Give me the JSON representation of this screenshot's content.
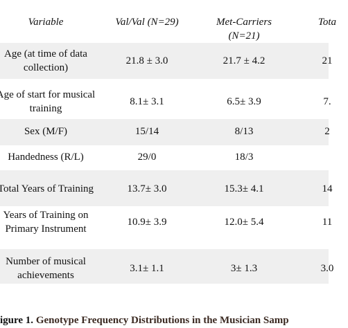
{
  "table": {
    "header": [
      "Variable",
      "Val/Val (N=29)",
      "Met-Carriers (N=21)",
      "Tota"
    ],
    "rows": [
      [
        "Age (at time of data collection)",
        "21.8 ± 3.0",
        "21.7 ± 4.2",
        "21"
      ],
      [
        "Age of start for musical training",
        "8.1± 3.1",
        "6.5± 3.9",
        "7."
      ],
      [
        "Sex (M/F)",
        "15/14",
        "8/13",
        "2"
      ],
      [
        "Handedness (R/L)",
        "29/0",
        "18/3",
        ""
      ],
      [
        "Total Years of Training",
        "13.7± 3.0",
        "15.3± 4.1",
        "14"
      ],
      [
        "Years of Training on Primary Instrument",
        "10.9± 3.9",
        "12.0± 5.4",
        "11"
      ],
      [
        "Number of musical achievements",
        "3.1± 1.1",
        "3± 1.3",
        "3.0"
      ]
    ]
  },
  "caption": {
    "label": "igure 1.",
    "text": "Genotype Frequency Distributions in the Musician Samp"
  }
}
